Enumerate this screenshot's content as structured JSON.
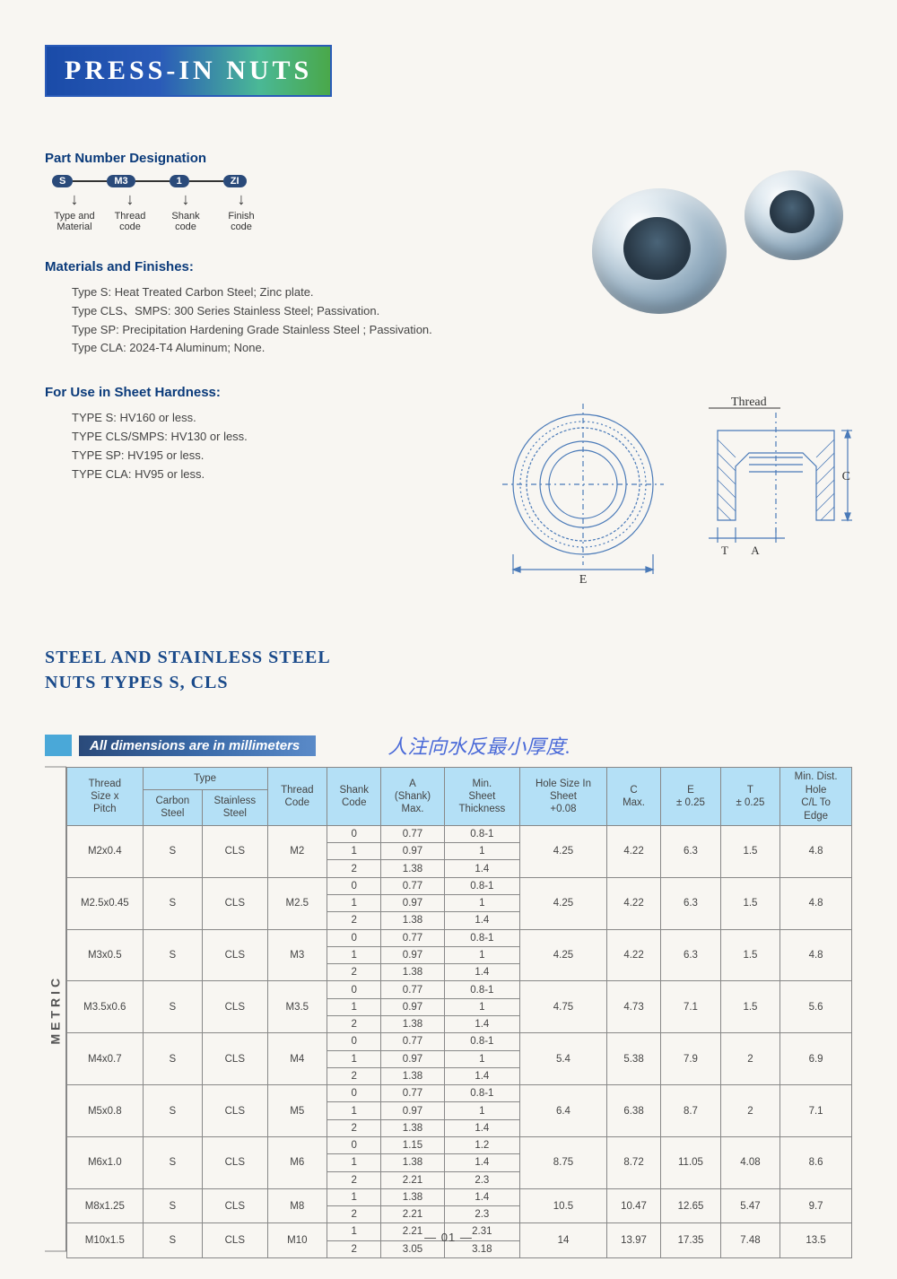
{
  "title": "PRESS-IN NUTS",
  "pnd": {
    "heading": "Part Number Designation",
    "pills": [
      "S",
      "M3",
      "1",
      "ZI"
    ],
    "labels": [
      "Type and\nMaterial",
      "Thread\ncode",
      "Shank\ncode",
      "Finish\ncode"
    ]
  },
  "materials": {
    "heading": "Materials and Finishes:",
    "lines": [
      "Type S: Heat Treated Carbon Steel;  Zinc plate.",
      "Type CLS、SMPS:  300 Series Stainless Steel; Passivation.",
      "Type SP:  Precipitation Hardening Grade Stainless Steel ; Passivation.",
      "Type CLA:  2024-T4 Aluminum; None."
    ]
  },
  "hardness": {
    "heading": "For Use in Sheet Hardness:",
    "lines": [
      "TYPE S:  HV160 or less.",
      "TYPE CLS/SMPS:  HV130 or less.",
      "TYPE SP:  HV195 or less.",
      "TYPE CLA:  HV95 or less."
    ]
  },
  "diagram_labels": {
    "thread": "Thread",
    "e": "E",
    "t": "T",
    "a": "A",
    "c": "C"
  },
  "section_heading": "STEEL AND STAINLESS STEEL\nNUTS  TYPES S, CLS",
  "dim_banner": "All dimensions are in millimeters",
  "handwriting": "人注向水反最小厚度.",
  "table": {
    "metric_label": "METRIC",
    "headers": {
      "thread": "Thread\nSize x\nPitch",
      "type": "Type",
      "carbon": "Carbon\nSteel",
      "stainless": "Stainless\nSteel",
      "threadcode": "Thread\nCode",
      "shankcode": "Shank\nCode",
      "a": "A\n(Shank)\nMax.",
      "minsheet": "Min.\nSheet\nThickness",
      "holesize": "Hole Size In\nSheet\n+0.08",
      "c": "C\nMax.",
      "e": "E\n± 0.25",
      "t": "T\n± 0.25",
      "mindist": "Min. Dist.\nHole\nC/L To\nEdge"
    },
    "rows": [
      {
        "thread": "M2x0.4",
        "cs": "S",
        "ss": "CLS",
        "tc": "M2",
        "shank": [
          "0",
          "1",
          "2"
        ],
        "a": [
          "0.77",
          "0.97",
          "1.38"
        ],
        "min": [
          "0.8-1",
          "1",
          "1.4"
        ],
        "hole": "4.25",
        "c": "4.22",
        "e": "6.3",
        "t": "1.5",
        "md": "4.8"
      },
      {
        "thread": "M2.5x0.45",
        "cs": "S",
        "ss": "CLS",
        "tc": "M2.5",
        "shank": [
          "0",
          "1",
          "2"
        ],
        "a": [
          "0.77",
          "0.97",
          "1.38"
        ],
        "min": [
          "0.8-1",
          "1",
          "1.4"
        ],
        "hole": "4.25",
        "c": "4.22",
        "e": "6.3",
        "t": "1.5",
        "md": "4.8"
      },
      {
        "thread": "M3x0.5",
        "cs": "S",
        "ss": "CLS",
        "tc": "M3",
        "shank": [
          "0",
          "1",
          "2"
        ],
        "a": [
          "0.77",
          "0.97",
          "1.38"
        ],
        "min": [
          "0.8-1",
          "1",
          "1.4"
        ],
        "hole": "4.25",
        "c": "4.22",
        "e": "6.3",
        "t": "1.5",
        "md": "4.8"
      },
      {
        "thread": "M3.5x0.6",
        "cs": "S",
        "ss": "CLS",
        "tc": "M3.5",
        "shank": [
          "0",
          "1",
          "2"
        ],
        "a": [
          "0.77",
          "0.97",
          "1.38"
        ],
        "min": [
          "0.8-1",
          "1",
          "1.4"
        ],
        "hole": "4.75",
        "c": "4.73",
        "e": "7.1",
        "t": "1.5",
        "md": "5.6"
      },
      {
        "thread": "M4x0.7",
        "cs": "S",
        "ss": "CLS",
        "tc": "M4",
        "shank": [
          "0",
          "1",
          "2"
        ],
        "a": [
          "0.77",
          "0.97",
          "1.38"
        ],
        "min": [
          "0.8-1",
          "1",
          "1.4"
        ],
        "hole": "5.4",
        "c": "5.38",
        "e": "7.9",
        "t": "2",
        "md": "6.9"
      },
      {
        "thread": "M5x0.8",
        "cs": "S",
        "ss": "CLS",
        "tc": "M5",
        "shank": [
          "0",
          "1",
          "2"
        ],
        "a": [
          "0.77",
          "0.97",
          "1.38"
        ],
        "min": [
          "0.8-1",
          "1",
          "1.4"
        ],
        "hole": "6.4",
        "c": "6.38",
        "e": "8.7",
        "t": "2",
        "md": "7.1"
      },
      {
        "thread": "M6x1.0",
        "cs": "S",
        "ss": "CLS",
        "tc": "M6",
        "shank": [
          "0",
          "1",
          "2"
        ],
        "a": [
          "1.15",
          "1.38",
          "2.21"
        ],
        "min": [
          "1.2",
          "1.4",
          "2.3"
        ],
        "hole": "8.75",
        "c": "8.72",
        "e": "11.05",
        "t": "4.08",
        "md": "8.6"
      },
      {
        "thread": "M8x1.25",
        "cs": "S",
        "ss": "CLS",
        "tc": "M8",
        "shank": [
          "1",
          "2"
        ],
        "a": [
          "1.38",
          "2.21"
        ],
        "min": [
          "1.4",
          "2.3"
        ],
        "hole": "10.5",
        "c": "10.47",
        "e": "12.65",
        "t": "5.47",
        "md": "9.7"
      },
      {
        "thread": "M10x1.5",
        "cs": "S",
        "ss": "CLS",
        "tc": "M10",
        "shank": [
          "1",
          "2"
        ],
        "a": [
          "2.21",
          "3.05"
        ],
        "min": [
          "2.31",
          "3.18"
        ],
        "hole": "14",
        "c": "13.97",
        "e": "17.35",
        "t": "7.48",
        "md": "13.5"
      }
    ]
  },
  "page_num": "— 01 —",
  "colors": {
    "header_th": "#b4e0f6",
    "title_grad_start": "#1a4ba8",
    "title_grad_end": "#4aa84a",
    "border": "#888888"
  }
}
